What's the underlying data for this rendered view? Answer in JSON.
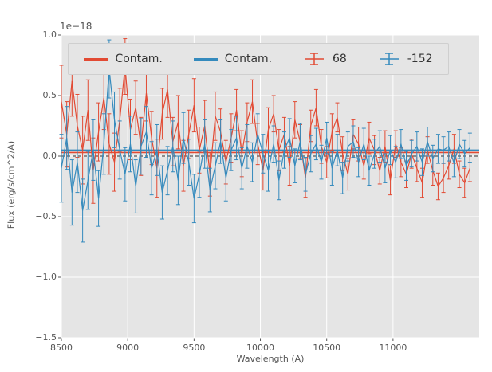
{
  "figure": {
    "background": "#ffffff",
    "plot_bg": "#e5e5e5",
    "grid_color": "#ffffff",
    "tick_color": "#555555"
  },
  "axes": {
    "offset_text": "1e−18",
    "x_tick_labels": [
      "8500",
      "9000",
      "9500",
      "10000",
      "10500",
      "11000"
    ],
    "y_tick_labels": [
      "−1.5",
      "−1.0",
      "−0.5",
      "0.0",
      "0.5",
      "1.0"
    ]
  },
  "legend": {
    "entries": [
      {
        "label": "Contam.",
        "glyph": "line",
        "color": "#e24a33"
      },
      {
        "label": "Contam.",
        "glyph": "line",
        "color": "#348abd"
      },
      {
        "label": "68",
        "glyph": "errorbar",
        "color": "#e24a33"
      },
      {
        "label": "-152",
        "glyph": "errorbar",
        "color": "#348abd"
      }
    ]
  },
  "chart_data": {
    "type": "line",
    "title": "",
    "xlabel": "Wavelength (A)",
    "ylabel": "Flux (erg/s/cm^2/A)",
    "y_unit_scale": "1e-18",
    "xlim": [
      8500,
      11650
    ],
    "ylim": [
      -1.5,
      1.0
    ],
    "x_ticks": [
      8500,
      9000,
      9500,
      10000,
      10500,
      11000
    ],
    "y_ticks": [
      -1.5,
      -1.0,
      -0.5,
      0.0,
      0.5,
      1.0
    ],
    "grid": true,
    "legend_position": "upper center",
    "x_start": 8500,
    "x_step": 40,
    "n_points": 78,
    "zero_line": {
      "y": 0.0,
      "color": "#333333",
      "style": "dashed"
    },
    "series": [
      {
        "name": "Contam.",
        "type": "hline",
        "color": "#e24a33",
        "value": 0.03
      },
      {
        "name": "Contam.",
        "type": "hline",
        "color": "#348abd",
        "value": 0.05
      },
      {
        "name": "68",
        "type": "errorbar",
        "color": "#e24a33",
        "values": [
          0.45,
          0.18,
          0.62,
          0.25,
          0.05,
          0.38,
          -0.12,
          0.2,
          0.48,
          0.1,
          -0.05,
          0.3,
          0.74,
          0.22,
          0.4,
          0.08,
          0.52,
          0.15,
          -0.1,
          0.35,
          0.55,
          0.12,
          0.28,
          -0.08,
          0.18,
          0.42,
          0.05,
          0.25,
          -0.15,
          0.33,
          0.2,
          -0.05,
          0.15,
          0.38,
          0.02,
          0.28,
          0.45,
          0.1,
          -0.12,
          0.22,
          0.35,
          0.05,
          0.18,
          -0.08,
          0.3,
          0.12,
          -0.18,
          0.25,
          0.4,
          0.08,
          -0.05,
          0.2,
          0.32,
          0.02,
          -0.15,
          0.18,
          0.1,
          -0.08,
          0.15,
          0.05,
          -0.12,
          0.08,
          -0.2,
          0.1,
          -0.05,
          -0.15,
          0.02,
          -0.1,
          -0.22,
          0.05,
          -0.12,
          -0.25,
          -0.18,
          -0.08,
          0.06,
          -0.15,
          -0.22,
          -0.1
        ],
        "yerr": [
          0.3,
          0.27,
          0.29,
          0.26,
          0.28,
          0.25,
          0.27,
          0.24,
          0.26,
          0.25,
          0.24,
          0.26,
          0.23,
          0.25,
          0.22,
          0.24,
          0.23,
          0.22,
          0.24,
          0.21,
          0.23,
          0.2,
          0.22,
          0.21,
          0.2,
          0.22,
          0.19,
          0.21,
          0.18,
          0.2,
          0.19,
          0.18,
          0.2,
          0.17,
          0.19,
          0.16,
          0.18,
          0.17,
          0.16,
          0.18,
          0.15,
          0.17,
          0.14,
          0.16,
          0.15,
          0.14,
          0.16,
          0.13,
          0.15,
          0.14,
          0.13,
          0.15,
          0.12,
          0.14,
          0.13,
          0.12,
          0.14,
          0.11,
          0.13,
          0.12,
          0.11,
          0.13,
          0.12,
          0.11,
          0.12,
          0.11,
          0.12,
          0.11,
          0.12,
          0.11,
          0.12,
          0.11,
          0.12,
          0.11,
          0.12,
          0.11,
          0.12,
          0.11
        ]
      },
      {
        "name": "-152",
        "type": "errorbar",
        "color": "#348abd",
        "values": [
          -0.1,
          0.15,
          -0.3,
          -0.05,
          -0.45,
          -0.2,
          0.05,
          -0.35,
          0.1,
          0.72,
          0.3,
          0.05,
          -0.15,
          0.1,
          -0.25,
          0.08,
          0.2,
          -0.1,
          0.05,
          -0.3,
          -0.12,
          0.08,
          -0.2,
          0.15,
          -0.05,
          -0.35,
          -0.15,
          0.1,
          -0.28,
          -0.08,
          0.12,
          -0.18,
          0.05,
          0.15,
          -0.1,
          0.08,
          -0.05,
          0.18,
          0.02,
          -0.12,
          0.1,
          -0.2,
          0.05,
          0.15,
          -0.08,
          0.12,
          -0.15,
          0.02,
          0.1,
          -0.05,
          0.15,
          -0.1,
          0.05,
          -0.18,
          0.08,
          0.12,
          -0.05,
          0.1,
          -0.12,
          0.02,
          0.08,
          -0.1,
          0.05,
          -0.05,
          0.1,
          -0.08,
          0.02,
          0.08,
          -0.05,
          0.12,
          -0.02,
          0.06,
          0.05,
          0.08,
          -0.06,
          0.1,
          0.02,
          0.07
        ],
        "yerr": [
          0.28,
          0.26,
          0.27,
          0.25,
          0.26,
          0.24,
          0.25,
          0.23,
          0.25,
          0.24,
          0.23,
          0.24,
          0.22,
          0.23,
          0.22,
          0.23,
          0.21,
          0.22,
          0.21,
          0.22,
          0.2,
          0.21,
          0.2,
          0.21,
          0.19,
          0.2,
          0.19,
          0.2,
          0.18,
          0.19,
          0.18,
          0.19,
          0.17,
          0.18,
          0.17,
          0.18,
          0.16,
          0.17,
          0.16,
          0.17,
          0.15,
          0.16,
          0.15,
          0.16,
          0.14,
          0.15,
          0.14,
          0.15,
          0.13,
          0.14,
          0.13,
          0.14,
          0.13,
          0.13,
          0.12,
          0.13,
          0.12,
          0.13,
          0.12,
          0.12,
          0.13,
          0.12,
          0.12,
          0.13,
          0.12,
          0.12,
          0.11,
          0.12,
          0.11,
          0.12,
          0.11,
          0.12,
          0.11,
          0.12,
          0.11,
          0.12,
          0.11,
          0.12
        ]
      }
    ]
  }
}
